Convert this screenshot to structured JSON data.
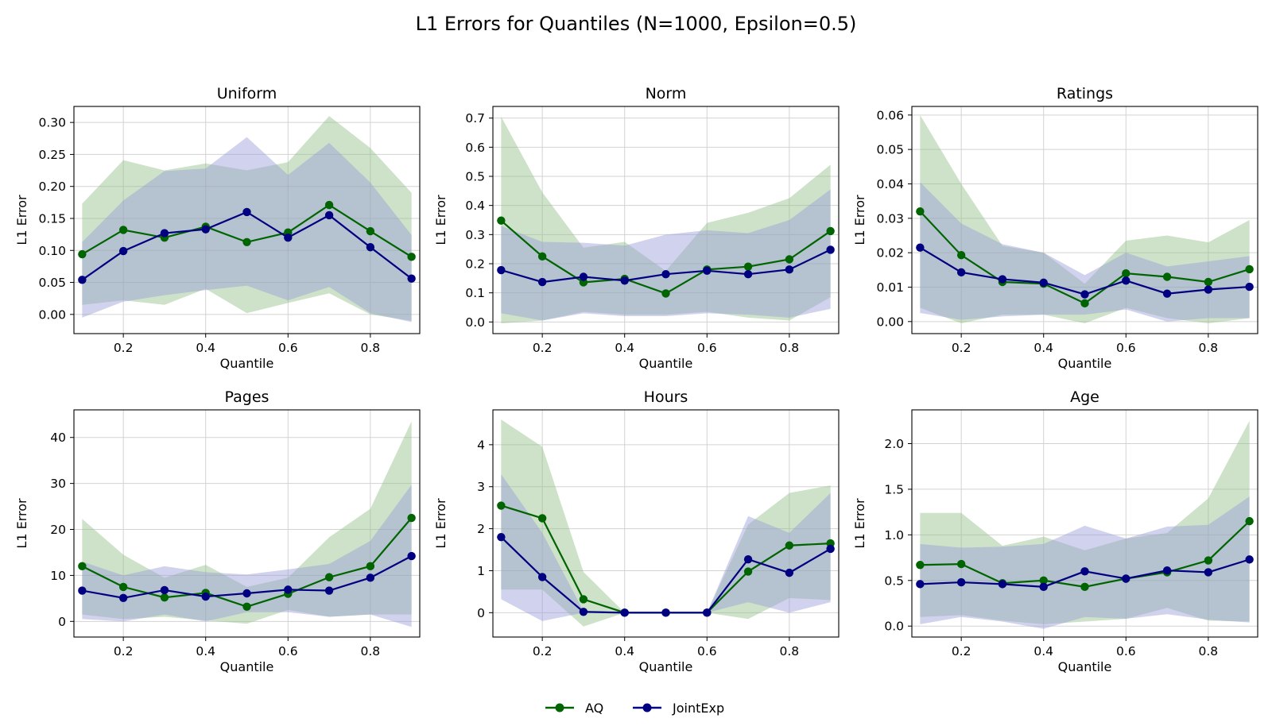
{
  "figure_title": "L1 Errors for Quantiles (N=1000, Epsilon=0.5)",
  "legend": {
    "items": [
      {
        "label": "AQ",
        "color": "#006400"
      },
      {
        "label": "JointExp",
        "color": "#000080"
      }
    ],
    "placement": "bottom-center"
  },
  "colors": {
    "aq_line": "#006400",
    "aq_band": "#90bf85",
    "jointexp_line": "#000080",
    "jointexp_band": "#9a9bd8"
  },
  "chart_data": [
    {
      "type": "line",
      "title": "Uniform",
      "xlabel": "Quantile",
      "ylabel": "L1 Error",
      "xlim": [
        0.08,
        0.92
      ],
      "ylim": [
        -0.03,
        0.325
      ],
      "grid": true,
      "x": [
        0.1,
        0.2,
        0.3,
        0.4,
        0.5,
        0.6,
        0.7,
        0.8,
        0.9
      ],
      "xticks": [
        0.2,
        0.4,
        0.6,
        0.8
      ],
      "xtick_labels": [
        "0.2",
        "0.4",
        "0.6",
        "0.8"
      ],
      "yticks": [
        0,
        0.05,
        0.1,
        0.15,
        0.2,
        0.25,
        0.3
      ],
      "ytick_labels": [
        "0.00",
        "0.05",
        "0.10",
        "0.15",
        "0.20",
        "0.25",
        "0.30"
      ],
      "series": [
        {
          "name": "AQ",
          "values": [
            0.094,
            0.132,
            0.12,
            0.137,
            0.113,
            0.128,
            0.171,
            0.13,
            0.09
          ],
          "lower": [
            0.015,
            0.022,
            0.015,
            0.04,
            0.002,
            0.018,
            0.033,
            0.0,
            -0.01
          ],
          "upper": [
            0.173,
            0.241,
            0.225,
            0.236,
            0.225,
            0.238,
            0.31,
            0.26,
            0.19
          ]
        },
        {
          "name": "JointExp",
          "values": [
            0.054,
            0.099,
            0.127,
            0.133,
            0.16,
            0.12,
            0.155,
            0.105,
            0.056
          ],
          "lower": [
            -0.005,
            0.02,
            0.03,
            0.038,
            0.045,
            0.022,
            0.043,
            0.002,
            -0.012
          ],
          "upper": [
            0.113,
            0.178,
            0.224,
            0.228,
            0.277,
            0.218,
            0.268,
            0.206,
            0.124
          ]
        }
      ]
    },
    {
      "type": "line",
      "title": "Norm",
      "xlabel": "Quantile",
      "ylabel": "L1 Error",
      "xlim": [
        0.08,
        0.92
      ],
      "ylim": [
        -0.04,
        0.74
      ],
      "grid": true,
      "x": [
        0.1,
        0.2,
        0.3,
        0.4,
        0.5,
        0.6,
        0.7,
        0.8,
        0.9
      ],
      "xticks": [
        0.2,
        0.4,
        0.6,
        0.8
      ],
      "xtick_labels": [
        "0.2",
        "0.4",
        "0.6",
        "0.8"
      ],
      "yticks": [
        0,
        0.1,
        0.2,
        0.3,
        0.4,
        0.5,
        0.6,
        0.7
      ],
      "ytick_labels": [
        "0.0",
        "0.1",
        "0.2",
        "0.3",
        "0.4",
        "0.5",
        "0.6",
        "0.7"
      ],
      "series": [
        {
          "name": "AQ",
          "values": [
            0.348,
            0.225,
            0.136,
            0.148,
            0.098,
            0.18,
            0.19,
            0.215,
            0.312
          ],
          "lower": [
            -0.005,
            0.005,
            0.035,
            0.025,
            0.025,
            0.035,
            0.015,
            0.005,
            0.085
          ],
          "upper": [
            0.705,
            0.445,
            0.255,
            0.275,
            0.175,
            0.34,
            0.375,
            0.425,
            0.54
          ]
        },
        {
          "name": "JointExp",
          "values": [
            0.178,
            0.137,
            0.155,
            0.142,
            0.164,
            0.176,
            0.164,
            0.18,
            0.248
          ],
          "lower": [
            0.03,
            0.005,
            0.03,
            0.02,
            0.02,
            0.03,
            0.025,
            0.015,
            0.045
          ],
          "upper": [
            0.33,
            0.275,
            0.272,
            0.262,
            0.3,
            0.315,
            0.305,
            0.35,
            0.455
          ]
        }
      ]
    },
    {
      "type": "line",
      "title": "Ratings",
      "xlabel": "Quantile",
      "ylabel": "L1 Error",
      "xlim": [
        0.08,
        0.92
      ],
      "ylim": [
        -0.0035,
        0.0625
      ],
      "grid": true,
      "x": [
        0.1,
        0.2,
        0.3,
        0.4,
        0.5,
        0.6,
        0.7,
        0.8,
        0.9
      ],
      "xticks": [
        0.2,
        0.4,
        0.6,
        0.8
      ],
      "xtick_labels": [
        "0.2",
        "0.4",
        "0.6",
        "0.8"
      ],
      "yticks": [
        0,
        0.01,
        0.02,
        0.03,
        0.04,
        0.05,
        0.06
      ],
      "ytick_labels": [
        "0.00",
        "0.01",
        "0.02",
        "0.03",
        "0.04",
        "0.05",
        "0.06"
      ],
      "series": [
        {
          "name": "AQ",
          "values": [
            0.032,
            0.0193,
            0.0115,
            0.011,
            0.0053,
            0.014,
            0.013,
            0.0115,
            0.0152
          ],
          "lower": [
            0.004,
            -0.0005,
            0.002,
            0.002,
            -0.0005,
            0.004,
            0.001,
            -0.0005,
            0.001
          ],
          "upper": [
            0.06,
            0.04,
            0.022,
            0.02,
            0.011,
            0.0235,
            0.025,
            0.023,
            0.0295
          ]
        },
        {
          "name": "JointExp",
          "values": [
            0.0215,
            0.0143,
            0.0123,
            0.0113,
            0.0079,
            0.0119,
            0.0081,
            0.0093,
            0.0101
          ],
          "lower": [
            0.0025,
            0.0005,
            0.0015,
            0.002,
            0.002,
            0.0035,
            0.0,
            0.001,
            0.001
          ],
          "upper": [
            0.0405,
            0.0285,
            0.0225,
            0.02,
            0.0135,
            0.02,
            0.016,
            0.0175,
            0.019
          ]
        }
      ]
    },
    {
      "type": "line",
      "title": "Pages",
      "xlabel": "Quantile",
      "ylabel": "L1 Error",
      "xlim": [
        0.08,
        0.92
      ],
      "ylim": [
        -3.4,
        46
      ],
      "grid": true,
      "x": [
        0.1,
        0.2,
        0.3,
        0.4,
        0.5,
        0.6,
        0.7,
        0.8,
        0.9
      ],
      "xticks": [
        0.2,
        0.4,
        0.6,
        0.8
      ],
      "xtick_labels": [
        "0.2",
        "0.4",
        "0.6",
        "0.8"
      ],
      "yticks": [
        0,
        10,
        20,
        30,
        40
      ],
      "ytick_labels": [
        "0",
        "10",
        "20",
        "30",
        "40"
      ],
      "series": [
        {
          "name": "AQ",
          "values": [
            12,
            7.5,
            5.2,
            6.2,
            3.2,
            6,
            9.6,
            12,
            22.5
          ],
          "lower": [
            1.5,
            0.5,
            1,
            0.2,
            -0.5,
            2.5,
            1,
            1.5,
            1.5
          ],
          "upper": [
            22.3,
            14.5,
            9.5,
            12.3,
            7.5,
            9.5,
            18.3,
            24.5,
            43.5
          ]
        },
        {
          "name": "JointExp",
          "values": [
            6.7,
            5.1,
            6.8,
            5.4,
            6.1,
            6.9,
            6.7,
            9.5,
            14.2
          ],
          "lower": [
            0.5,
            0,
            1.5,
            0,
            2,
            2,
            1,
            1.5,
            -1.2
          ],
          "upper": [
            13,
            10,
            12,
            10.7,
            10.2,
            11.3,
            12.5,
            17.5,
            29.7
          ]
        }
      ]
    },
    {
      "type": "line",
      "title": "Hours",
      "xlabel": "Quantile",
      "ylabel": "L1 Error",
      "xlim": [
        0.08,
        0.92
      ],
      "ylim": [
        -0.58,
        4.83
      ],
      "grid": true,
      "x": [
        0.1,
        0.2,
        0.3,
        0.4,
        0.5,
        0.6,
        0.7,
        0.8,
        0.9
      ],
      "xticks": [
        0.2,
        0.4,
        0.6,
        0.8
      ],
      "xtick_labels": [
        "0.2",
        "0.4",
        "0.6",
        "0.8"
      ],
      "yticks": [
        0,
        1,
        2,
        3,
        4
      ],
      "ytick_labels": [
        "0",
        "1",
        "2",
        "3",
        "4"
      ],
      "series": [
        {
          "name": "AQ",
          "values": [
            2.55,
            2.25,
            0.32,
            0,
            0,
            0,
            0.98,
            1.6,
            1.65
          ],
          "lower": [
            0.55,
            0.55,
            -0.33,
            0,
            0,
            0,
            -0.15,
            0.35,
            0.3
          ],
          "upper": [
            4.6,
            3.95,
            0.97,
            0,
            0,
            0,
            2.1,
            2.85,
            3.03
          ]
        },
        {
          "name": "JointExp",
          "values": [
            1.8,
            0.85,
            0.02,
            0,
            0,
            0,
            1.27,
            0.95,
            1.52
          ],
          "lower": [
            0.32,
            -0.2,
            0,
            0,
            0,
            0,
            0.25,
            0,
            0.25
          ],
          "upper": [
            3.3,
            1.9,
            0.04,
            0,
            0,
            0,
            2.3,
            1.9,
            2.85
          ]
        }
      ]
    },
    {
      "type": "line",
      "title": "Age",
      "xlabel": "Quantile",
      "ylabel": "L1 Error",
      "xlim": [
        0.08,
        0.92
      ],
      "ylim": [
        -0.12,
        2.37
      ],
      "grid": true,
      "x": [
        0.1,
        0.2,
        0.3,
        0.4,
        0.5,
        0.6,
        0.7,
        0.8,
        0.9
      ],
      "xticks": [
        0.2,
        0.4,
        0.6,
        0.8
      ],
      "xtick_labels": [
        "0.2",
        "0.4",
        "0.6",
        "0.8"
      ],
      "yticks": [
        0,
        0.5,
        1,
        1.5,
        2
      ],
      "ytick_labels": [
        "0.0",
        "0.5",
        "1.0",
        "1.5",
        "2.0"
      ],
      "series": [
        {
          "name": "AQ",
          "values": [
            0.67,
            0.68,
            0.47,
            0.5,
            0.43,
            0.52,
            0.59,
            0.72,
            1.15
          ],
          "lower": [
            0.1,
            0.12,
            0.06,
            0.02,
            0.05,
            0.08,
            0.2,
            0.06,
            0.05
          ],
          "upper": [
            1.24,
            1.24,
            0.88,
            0.98,
            0.83,
            0.96,
            1.02,
            1.4,
            2.25
          ]
        },
        {
          "name": "JointExp",
          "values": [
            0.46,
            0.48,
            0.46,
            0.43,
            0.6,
            0.52,
            0.61,
            0.59,
            0.73
          ],
          "lower": [
            0.02,
            0.1,
            0.05,
            -0.03,
            0.1,
            0.08,
            0.13,
            0.07,
            0.04
          ],
          "upper": [
            0.9,
            0.86,
            0.87,
            0.9,
            1.1,
            0.96,
            1.09,
            1.11,
            1.42
          ]
        }
      ]
    }
  ]
}
